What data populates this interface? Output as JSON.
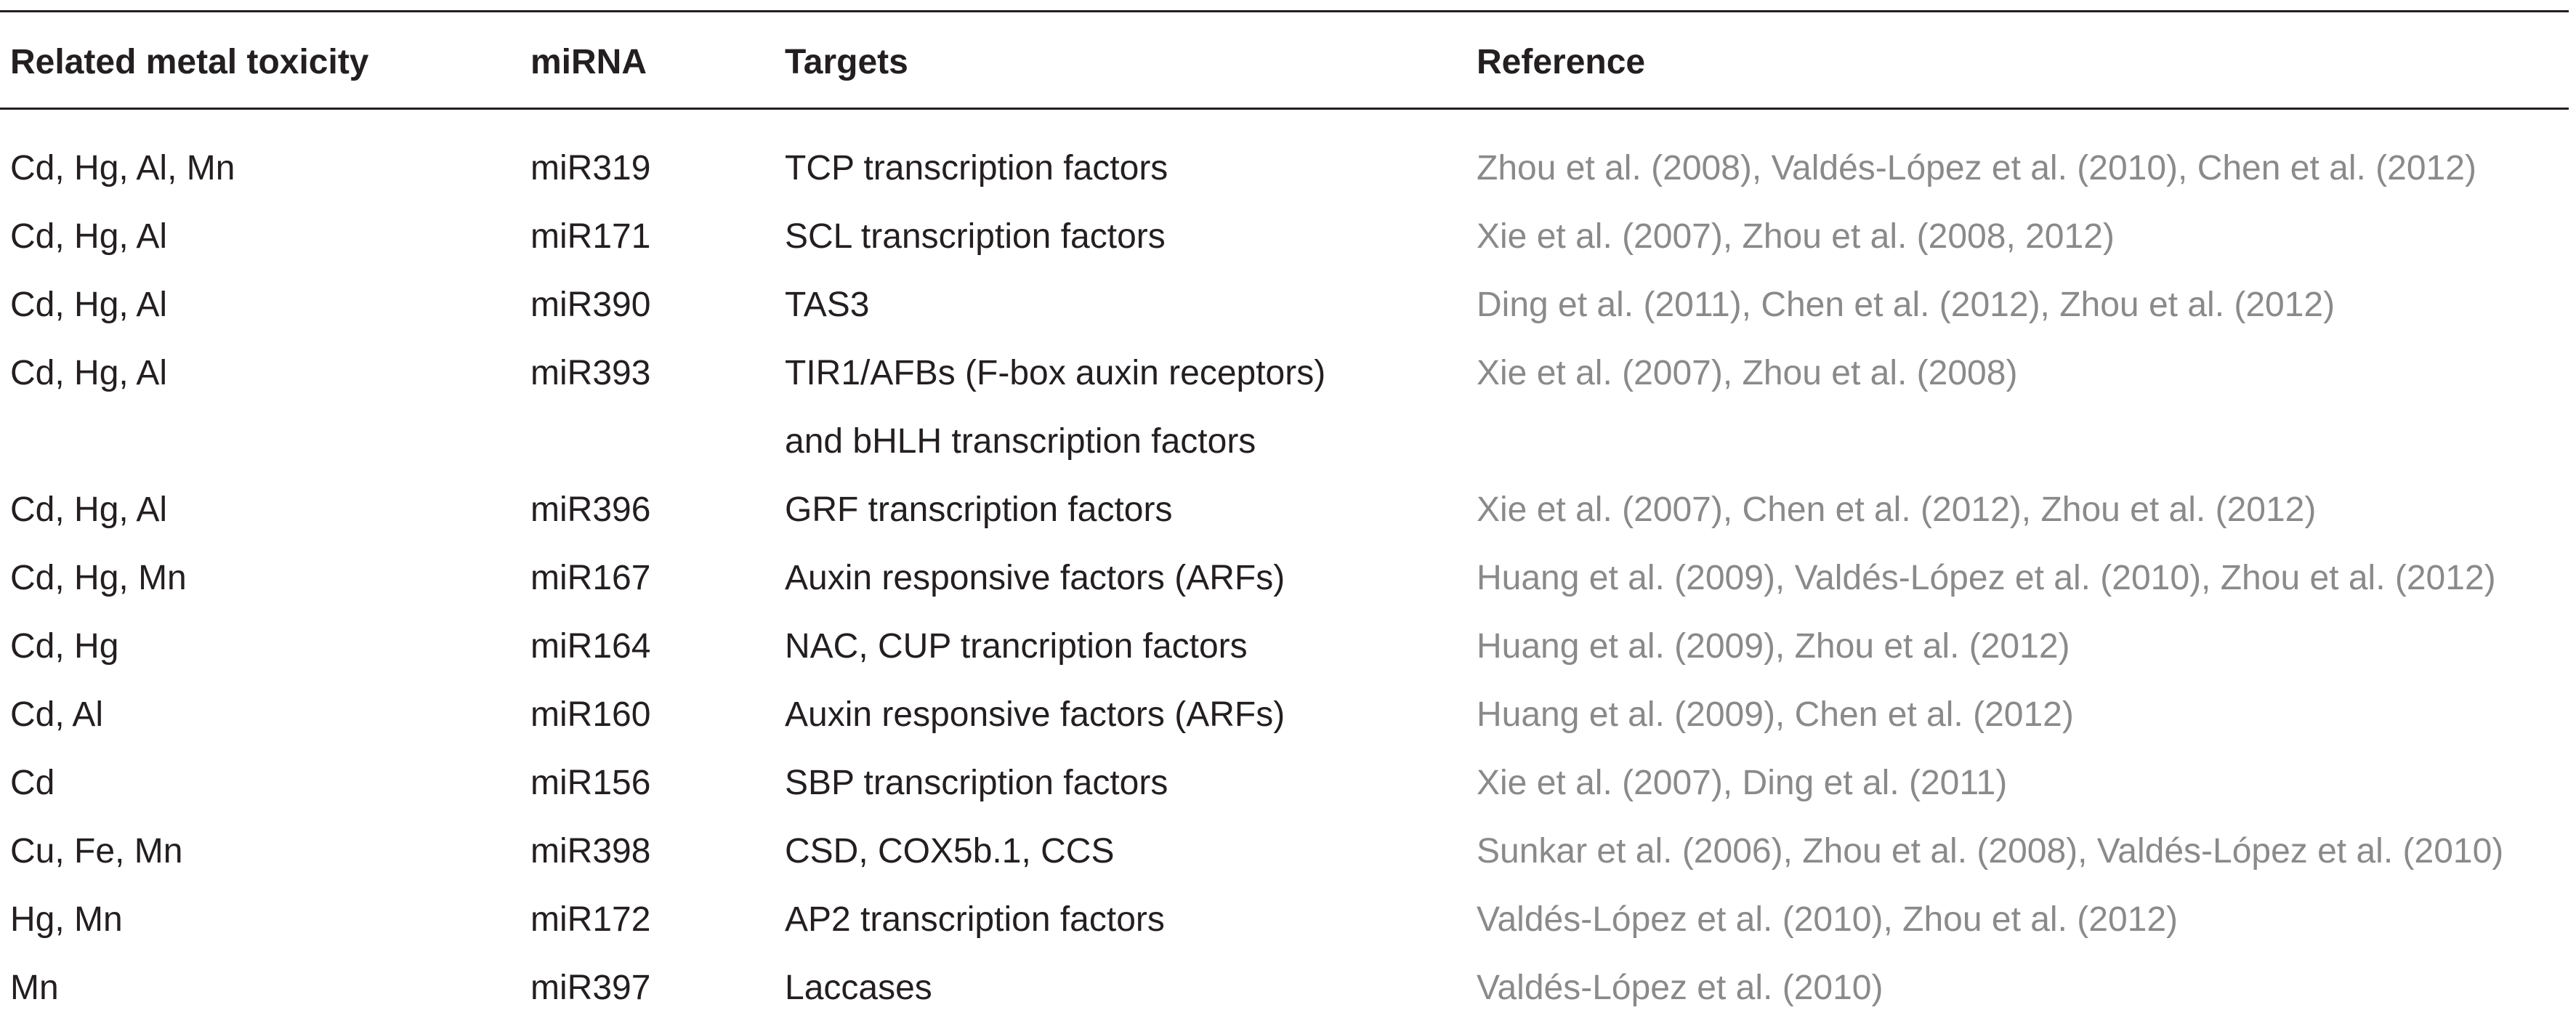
{
  "table": {
    "headers": [
      "Related metal toxicity",
      "miRNA",
      "Targets",
      "Reference"
    ],
    "rows": [
      {
        "metals": "Cd, Hg, Al, Mn",
        "mirna": "miR319",
        "targets": "TCP transcription factors",
        "reference": "Zhou et al. (2008), Valdés-López et al. (2010), Chen et al. (2012)"
      },
      {
        "metals": "Cd, Hg, Al",
        "mirna": "miR171",
        "targets": "SCL transcription factors",
        "reference": "Xie et al. (2007), Zhou et al. (2008, 2012)"
      },
      {
        "metals": "Cd, Hg, Al",
        "mirna": "miR390",
        "targets": "TAS3",
        "reference": "Ding et al. (2011), Chen et al. (2012), Zhou et al. (2012)"
      },
      {
        "metals": "Cd, Hg, Al",
        "mirna": "miR393",
        "targets": "TIR1/AFBs (F-box auxin receptors)",
        "reference": "Xie et al. (2007), Zhou et al. (2008)"
      },
      {
        "metals": "",
        "mirna": "",
        "targets": "and bHLH transcription factors",
        "reference": ""
      },
      {
        "metals": "Cd, Hg, Al",
        "mirna": "miR396",
        "targets": "GRF transcription factors",
        "reference": "Xie et al. (2007), Chen et al. (2012), Zhou et al. (2012)"
      },
      {
        "metals": "Cd, Hg, Mn",
        "mirna": "miR167",
        "targets": "Auxin responsive factors (ARFs)",
        "reference": "Huang et al. (2009), Valdés-López et al. (2010), Zhou et al. (2012)"
      },
      {
        "metals": "Cd, Hg",
        "mirna": "miR164",
        "targets": "NAC, CUP trancription factors",
        "reference": "Huang et al. (2009), Zhou et al. (2012)"
      },
      {
        "metals": "Cd, Al",
        "mirna": "miR160",
        "targets": "Auxin responsive factors (ARFs)",
        "reference": "Huang et al. (2009), Chen et al. (2012)"
      },
      {
        "metals": "Cd",
        "mirna": "miR156",
        "targets": "SBP transcription factors",
        "reference": "Xie et al. (2007), Ding et al. (2011)"
      },
      {
        "metals": "Cu, Fe, Mn",
        "mirna": "miR398",
        "targets": "CSD, COX5b.1, CCS",
        "reference": "Sunkar et al. (2006), Zhou et al. (2008), Valdés-López et al. (2010)"
      },
      {
        "metals": "Hg, Mn",
        "mirna": "miR172",
        "targets": "AP2 transcription factors",
        "reference": "Valdés-López et al. (2010), Zhou et al. (2012)"
      },
      {
        "metals": "Mn",
        "mirna": "miR397",
        "targets": "Laccases",
        "reference": "Valdés-López et al. (2010)"
      }
    ]
  }
}
